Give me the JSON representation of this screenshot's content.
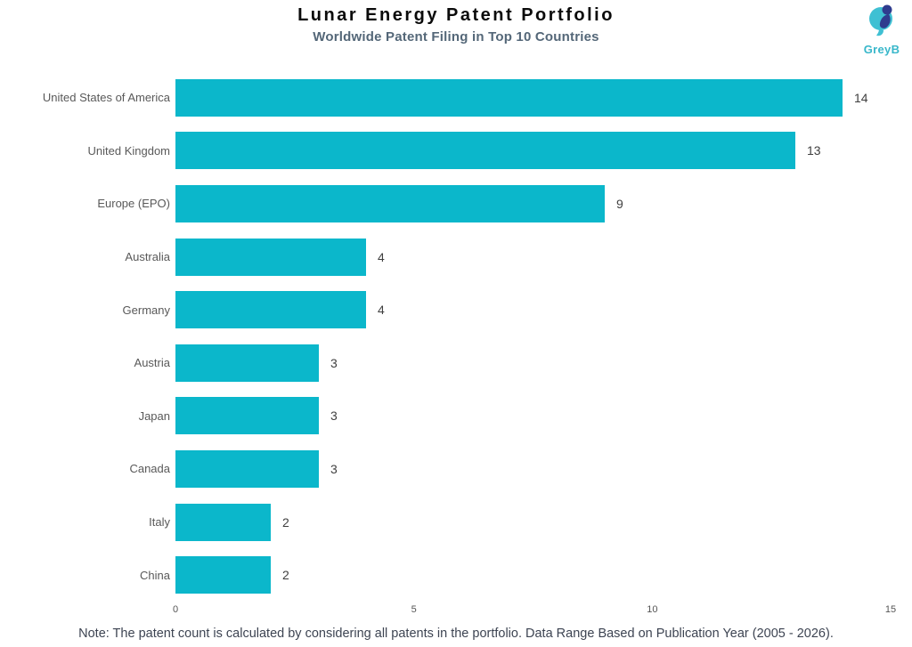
{
  "header": {
    "title": "Lunar Energy Patent Portfolio",
    "subtitle": "Worldwide Patent Filing in Top 10 Countries"
  },
  "logo": {
    "text": "GreyB",
    "icon": "greyb-moon-logo",
    "teal": "#3fc0d3",
    "navy": "#2f3c8e"
  },
  "chart_data": {
    "type": "bar",
    "orientation": "horizontal",
    "title": "Lunar Energy Patent Portfolio",
    "subtitle": "Worldwide Patent Filing in Top 10 Countries",
    "categories": [
      "United States of America",
      "United Kingdom",
      "Europe (EPO)",
      "Australia",
      "Germany",
      "Austria",
      "Japan",
      "Canada",
      "Italy",
      "China"
    ],
    "values": [
      14,
      13,
      9,
      4,
      4,
      3,
      3,
      3,
      2,
      2
    ],
    "xlabel": "",
    "ylabel": "",
    "xlim": [
      0,
      15
    ],
    "xticks": [
      0,
      5,
      10,
      15
    ],
    "grid": false,
    "legend": false,
    "bar_color": "#0bb7cb",
    "category_label_color": "#595959",
    "value_label_color": "#3f3f3f",
    "tick_label_color": "#555555"
  },
  "footer": {
    "note": "Note: The patent count is calculated by considering all patents in the portfolio. Data Range Based on Publication Year (2005 - 2026)."
  }
}
